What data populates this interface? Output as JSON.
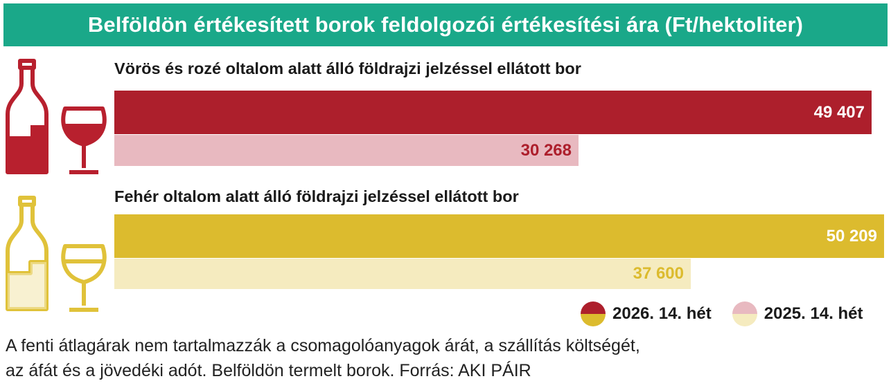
{
  "colors": {
    "title_bg": "#1aa889",
    "red_current": "#ad1f2c",
    "red_previous": "#e8b9c0",
    "yellow_current": "#dcbb2e",
    "yellow_previous": "#f5ebbf",
    "red_icon": "#b8202e",
    "yellow_icon": "#e0c23a"
  },
  "chart_data": {
    "type": "bar",
    "orientation": "horizontal",
    "title": "Belföldön értékesített borok feldolgozói értékesítési ára  (Ft/hektoliter)",
    "categories": [
      "Vörös és rozé oltalom alatt álló földrajzi jelzéssel ellátott bor",
      "Fehér oltalom alatt álló földrajzi jelzéssel ellátott bor"
    ],
    "series": [
      {
        "name": "2026. 14. hét",
        "values": [
          49407,
          50209
        ],
        "labels": [
          "49 407",
          "50 209"
        ]
      },
      {
        "name": "2025. 14. hét",
        "values": [
          30268,
          37600
        ],
        "labels": [
          "30 268",
          "37 600"
        ]
      }
    ],
    "xlim": [
      0,
      50209
    ],
    "grid": false,
    "legend_position": "bottom-right"
  },
  "footnote": {
    "line1": "A fenti átlagárak nem tartalmazzák a csomagolóanyagok árát, a szállítás költségét,",
    "line2": "az áfát és a jövedéki adót. Belföldön termelt borok. Forrás: AKI PÁIR"
  },
  "icons": {
    "red_bottle": "red-wine-bottle-icon",
    "red_glass": "red-wine-glass-icon",
    "white_bottle": "white-wine-bottle-icon",
    "white_glass": "white-wine-glass-icon"
  }
}
